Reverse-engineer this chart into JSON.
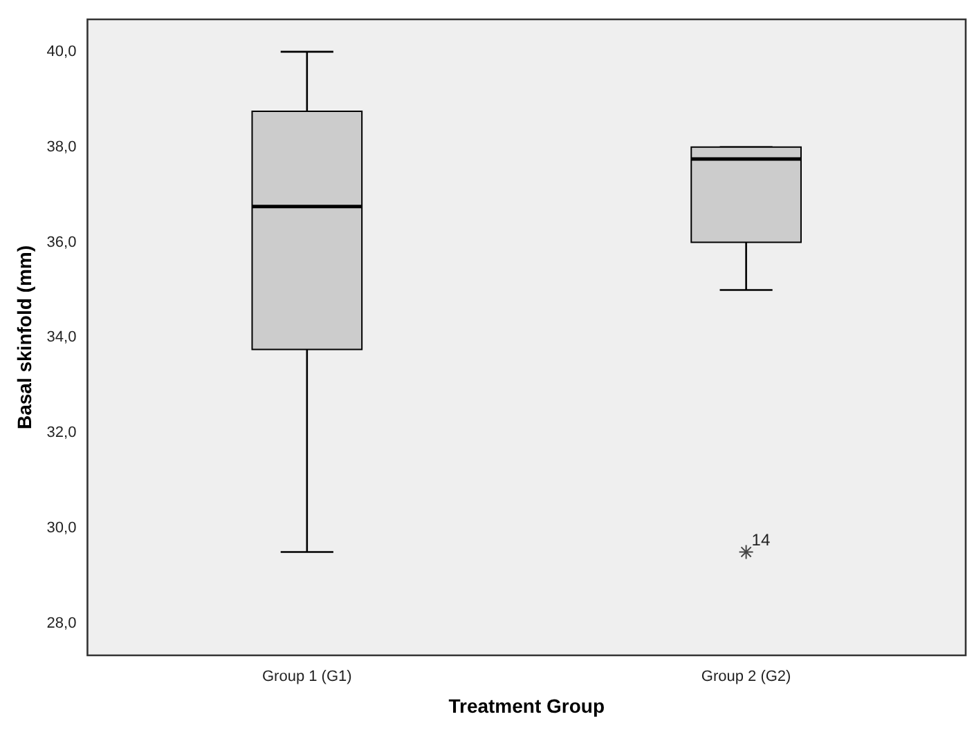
{
  "chart_data": {
    "type": "box",
    "xlabel": "Treatment Group",
    "ylabel": "Basal skinfold (mm)",
    "categories": [
      "Group 1 (G1)",
      "Group 2 (G2)"
    ],
    "boxes": [
      {
        "low": 29.5,
        "q1": 33.75,
        "median": 36.75,
        "q3": 38.75,
        "high": 40
      },
      {
        "low": 35,
        "q1": 36,
        "median": 37.75,
        "q3": 38,
        "high": 38,
        "outliers": [
          29.5
        ]
      }
    ],
    "color": "#cccccc",
    "ylim": [
      27.33,
      40.68
    ],
    "yticks": [
      {
        "value": 28,
        "label": "28,0"
      },
      {
        "value": 30,
        "label": "30,0"
      },
      {
        "value": 32,
        "label": "32,0"
      },
      {
        "value": 34,
        "label": "34,0"
      },
      {
        "value": 36,
        "label": "36,0"
      },
      {
        "value": 38,
        "label": "38,0"
      },
      {
        "value": 40,
        "label": "40,0"
      }
    ],
    "marker": "star",
    "annotations": [
      "14"
    ]
  }
}
